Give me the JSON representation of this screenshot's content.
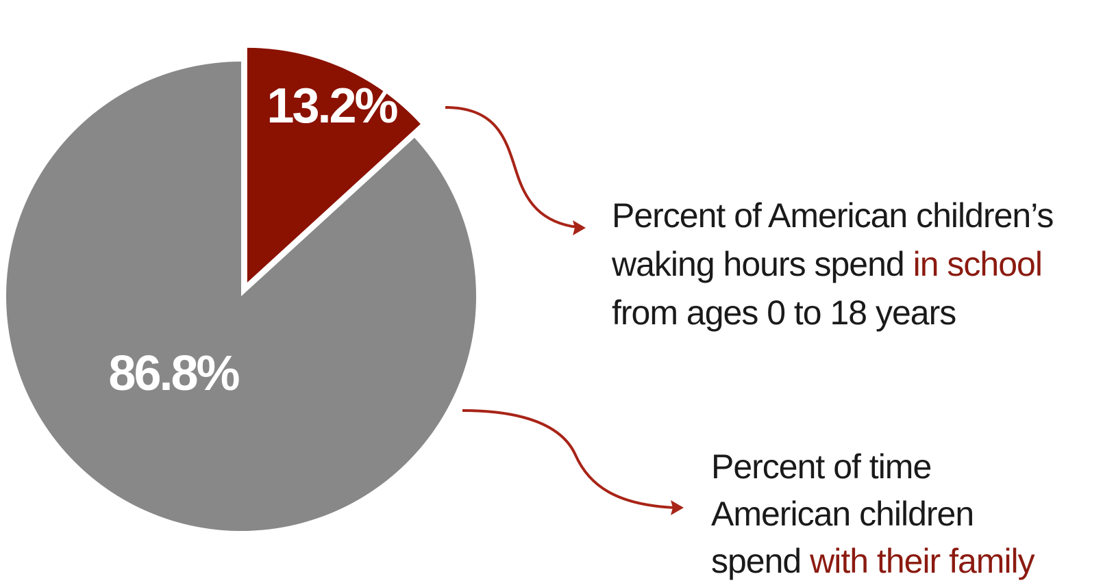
{
  "chart_data": {
    "type": "pie",
    "slices": [
      {
        "label": "13.2%",
        "value": 13.2,
        "color": "#8b1100",
        "exploded": true
      },
      {
        "label": "86.8%",
        "value": 86.8,
        "color": "#888888",
        "exploded": false
      }
    ],
    "annotations": [
      {
        "text_before": "Percent of American children’s waking hours spend ",
        "highlight": "in school",
        "text_after": " from ages 0 to 18 years",
        "slice": "13.2%"
      },
      {
        "text_before": "Percent of time American children spend ",
        "highlight": "with their family",
        "text_after": "",
        "slice": "86.8%"
      }
    ],
    "colors": {
      "arrow": "#a82417",
      "highlight_text": "#8b1a10",
      "caption_text": "#1a1a1a"
    }
  }
}
